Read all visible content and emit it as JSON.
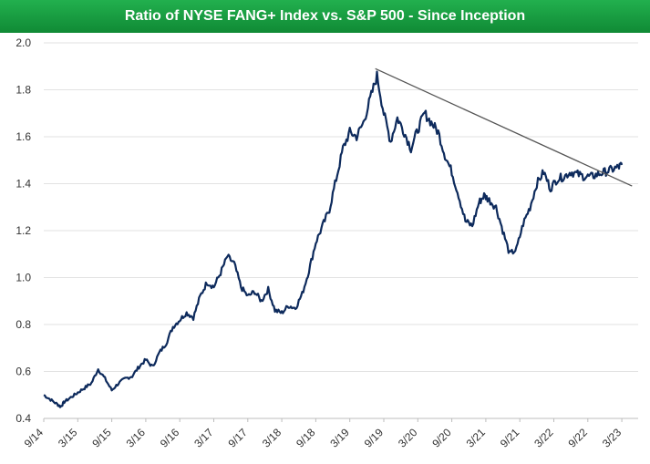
{
  "chart_data": {
    "type": "line",
    "title": "Ratio of NYSE FANG+ Index vs. S&P 500 - Since Inception",
    "xlabel": "",
    "ylabel": "",
    "ylim": [
      0.4,
      2.0
    ],
    "yticks": [
      "2.0",
      "1.8",
      "1.6",
      "1.4",
      "1.2",
      "1.0",
      "0.8",
      "0.6",
      "0.4"
    ],
    "xticks": [
      "9/14",
      "3/15",
      "9/15",
      "3/16",
      "9/16",
      "3/17",
      "9/17",
      "3/18",
      "9/18",
      "3/19",
      "9/19",
      "3/20",
      "9/20",
      "3/21",
      "9/21",
      "3/22",
      "9/22",
      "3/23"
    ],
    "grid": "horizontal",
    "series": [
      {
        "name": "FANG+ / S&P 500 ratio",
        "color": "#0d2a5c",
        "x": [
          0,
          0.2,
          0.4,
          0.5,
          0.6,
          0.8,
          1.0,
          1.2,
          1.4,
          1.6,
          1.8,
          2.0,
          2.2,
          2.4,
          2.6,
          2.8,
          3.0,
          3.2,
          3.4,
          3.6,
          3.8,
          4.0,
          4.2,
          4.4,
          4.6,
          4.8,
          5.0,
          5.2,
          5.4,
          5.6,
          5.8,
          6.0,
          6.2,
          6.4,
          6.6,
          6.8,
          7.0,
          7.2,
          7.4,
          7.6,
          7.8,
          8.0,
          8.2,
          8.4,
          8.6,
          8.8,
          9.0,
          9.2,
          9.4,
          9.6,
          9.8,
          10.0,
          10.2,
          10.4,
          10.6,
          10.8,
          11.0,
          11.2,
          11.4,
          11.6,
          11.8,
          12.0,
          12.2,
          12.4,
          12.6,
          12.8,
          12.95,
          13.1,
          13.3,
          13.5,
          13.7,
          13.9,
          14.1,
          14.3,
          14.5,
          14.7,
          14.9,
          15.1,
          15.3,
          15.5,
          15.7,
          15.9,
          16.1,
          16.3,
          16.5,
          16.7,
          16.9,
          17.0
        ],
        "values": [
          0.5,
          0.48,
          0.46,
          0.45,
          0.47,
          0.49,
          0.51,
          0.53,
          0.55,
          0.61,
          0.57,
          0.52,
          0.55,
          0.57,
          0.58,
          0.62,
          0.65,
          0.62,
          0.68,
          0.72,
          0.79,
          0.82,
          0.85,
          0.83,
          0.92,
          0.98,
          0.96,
          1.02,
          1.09,
          1.06,
          0.96,
          0.92,
          0.94,
          0.9,
          0.95,
          0.86,
          0.85,
          0.88,
          0.87,
          0.93,
          1.03,
          1.15,
          1.22,
          1.29,
          1.42,
          1.55,
          1.62,
          1.6,
          1.66,
          1.76,
          1.86,
          1.7,
          1.58,
          1.68,
          1.62,
          1.55,
          1.63,
          1.7,
          1.66,
          1.62,
          1.52,
          1.45,
          1.35,
          1.24,
          1.22,
          1.32,
          1.35,
          1.33,
          1.3,
          1.2,
          1.1,
          1.12,
          1.23,
          1.3,
          1.4,
          1.45,
          1.38,
          1.42,
          1.43,
          1.45,
          1.44,
          1.43,
          1.43,
          1.44,
          1.45,
          1.46,
          1.47,
          1.48
        ]
      }
    ],
    "annotations": [
      {
        "type": "trendline",
        "from": {
          "x": 9.75,
          "y": 1.89
        },
        "to": {
          "x": 17.3,
          "y": 1.39
        },
        "color": "#555555"
      }
    ]
  }
}
